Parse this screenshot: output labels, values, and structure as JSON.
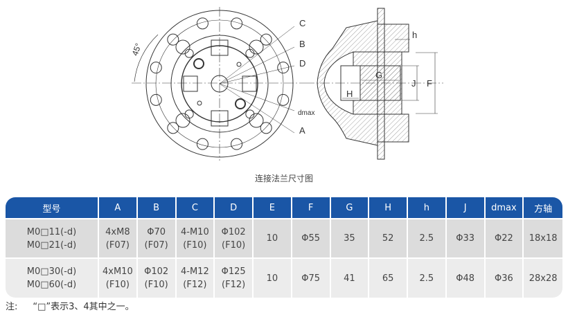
{
  "drawing": {
    "labels": {
      "C": "C",
      "B": "B",
      "D": "D",
      "dmax": "dmax",
      "A": "A",
      "angle": "45°",
      "h": "h",
      "G": "G",
      "H": "H",
      "J": "J",
      "F": "F"
    },
    "caption": "连接法兰尺寸图"
  },
  "table": {
    "header_color": "#1a56a6",
    "headers": [
      "型号",
      "A",
      "B",
      "C",
      "D",
      "E",
      "F",
      "G",
      "H",
      "h",
      "J",
      "dmax",
      "方轴"
    ],
    "rows": [
      {
        "model": [
          "M0□11(-d)",
          "M0□21(-d)"
        ],
        "A": [
          "4xM8",
          "(F07)"
        ],
        "B": [
          "Φ70",
          "(F07)"
        ],
        "C": [
          "4-M10",
          "(F10)"
        ],
        "D": [
          "Φ102",
          "(F10)"
        ],
        "E": "10",
        "F": "Φ55",
        "G": "35",
        "H": "52",
        "h": "2.5",
        "J": "Φ33",
        "dmax": "Φ22",
        "shaft": "18x18"
      },
      {
        "model": [
          "M0□30(-d)",
          "M0□60(-d)"
        ],
        "A": [
          "4xM10",
          "(F10)"
        ],
        "B": [
          "Φ102",
          "(F10)"
        ],
        "C": [
          "4-M12",
          "(F12)"
        ],
        "D": [
          "Φ125",
          "(F12)"
        ],
        "E": "10",
        "F": "Φ75",
        "G": "41",
        "H": "65",
        "h": "2.5",
        "J": "Φ48",
        "dmax": "Φ36",
        "shaft": "28x28"
      }
    ]
  },
  "note": {
    "label": "注:",
    "text": "“□”表示3、4其中之一。"
  }
}
